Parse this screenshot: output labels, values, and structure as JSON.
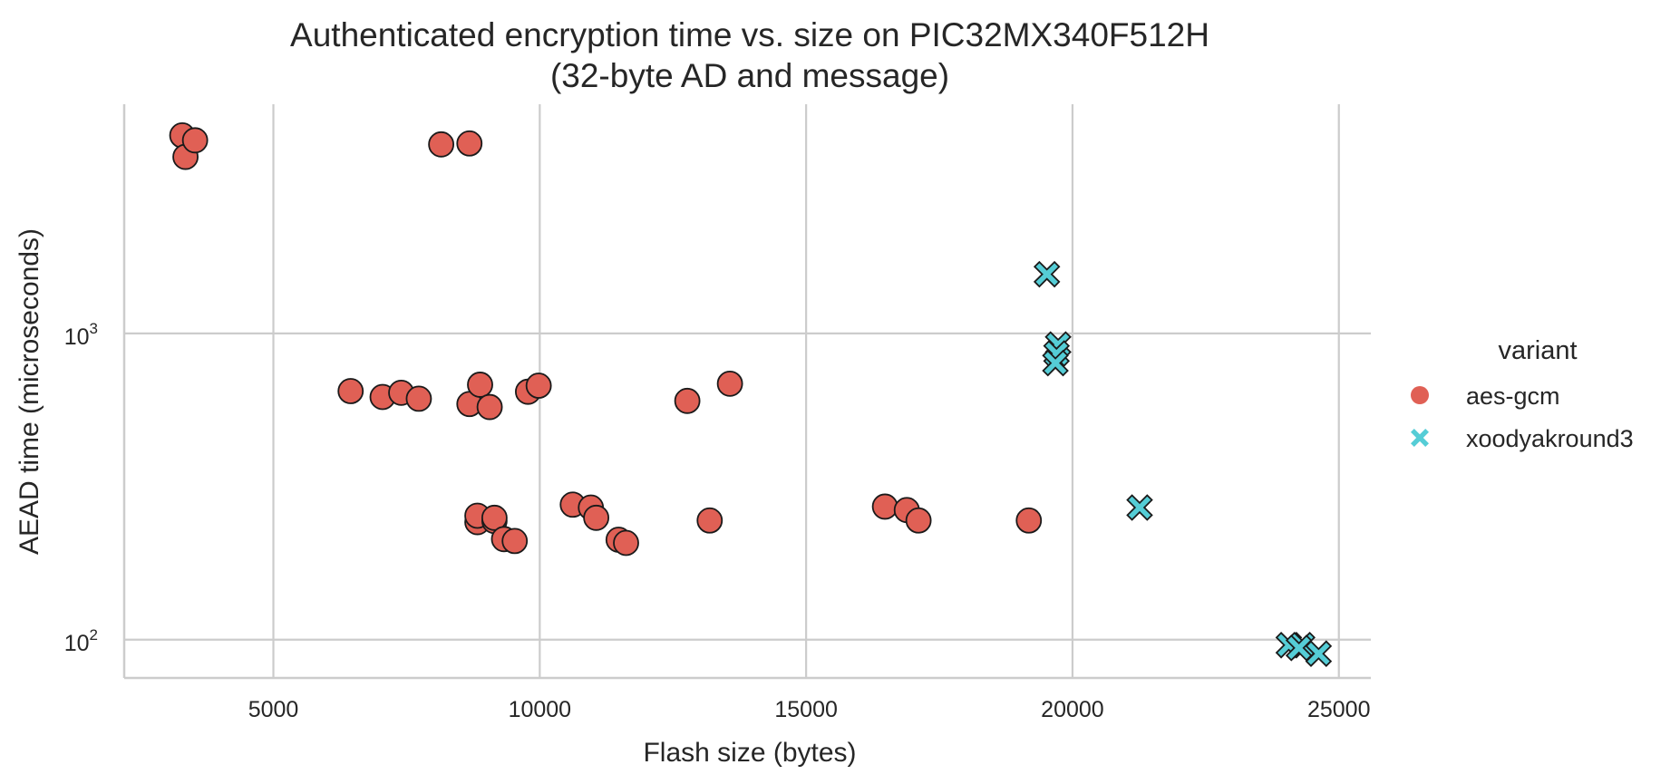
{
  "chart_data": {
    "type": "scatter",
    "title_lines": [
      "Authenticated encryption time vs. size on PIC32MX340F512H",
      "(32-byte AD and message)"
    ],
    "xlabel": "Flash size (bytes)",
    "ylabel": "AEAD time (microseconds)",
    "x_scale": "linear",
    "y_scale": "log",
    "xlim": [
      2200,
      25600
    ],
    "ylim": [
      75,
      5600
    ],
    "x_ticks": [
      {
        "value": 5000,
        "label": "5000"
      },
      {
        "value": 10000,
        "label": "10000"
      },
      {
        "value": 15000,
        "label": "15000"
      },
      {
        "value": 20000,
        "label": "20000"
      },
      {
        "value": 25000,
        "label": "25000"
      }
    ],
    "y_ticks": [
      {
        "value": 100,
        "base": "10",
        "exp": "2"
      },
      {
        "value": 1000,
        "base": "10",
        "exp": "3"
      }
    ],
    "grid": true,
    "legend": {
      "title": "variant",
      "placement": "right",
      "entries": [
        {
          "label": "aes-gcm",
          "marker": "circle",
          "color": "#e06055"
        },
        {
          "label": "xoodyakround3",
          "marker": "x",
          "color": "#55cdd6"
        }
      ]
    },
    "series": [
      {
        "name": "aes-gcm",
        "marker": "circle",
        "color": "#e06055",
        "points": [
          [
            3290,
            4430
          ],
          [
            3350,
            3770
          ],
          [
            3530,
            4270
          ],
          [
            8150,
            4140
          ],
          [
            8680,
            4170
          ],
          [
            6450,
            648
          ],
          [
            7050,
            620
          ],
          [
            7400,
            640
          ],
          [
            7730,
            612
          ],
          [
            8680,
            588
          ],
          [
            8880,
            680
          ],
          [
            9060,
            575
          ],
          [
            9780,
            645
          ],
          [
            9980,
            675
          ],
          [
            12770,
            602
          ],
          [
            13570,
            685
          ],
          [
            8830,
            242
          ],
          [
            8830,
            254
          ],
          [
            9150,
            244
          ],
          [
            9150,
            250
          ],
          [
            9330,
            213
          ],
          [
            9530,
            210
          ],
          [
            10620,
            276
          ],
          [
            10960,
            270
          ],
          [
            11060,
            250
          ],
          [
            11480,
            212
          ],
          [
            11620,
            207
          ],
          [
            13190,
            245
          ],
          [
            16480,
            272
          ],
          [
            16890,
            265
          ],
          [
            17110,
            245
          ],
          [
            19180,
            245
          ]
        ]
      },
      {
        "name": "xoodyakround3",
        "marker": "x",
        "color": "#55cdd6",
        "points": [
          [
            19520,
            1560
          ],
          [
            19730,
            920
          ],
          [
            19700,
            860
          ],
          [
            19680,
            800
          ],
          [
            21260,
            270
          ],
          [
            24060,
            96
          ],
          [
            24310,
            96
          ],
          [
            24250,
            94
          ],
          [
            24620,
            90
          ]
        ]
      }
    ]
  }
}
